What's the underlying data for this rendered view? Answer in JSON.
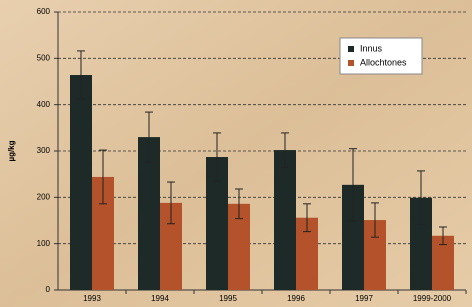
{
  "chart_data": {
    "type": "bar",
    "y_label": "µg/kg",
    "categories": [
      "1993",
      "1994",
      "1995",
      "1996",
      "1997",
      "1999-2000"
    ],
    "series": [
      {
        "name": "Innus",
        "color": "#1d2a27",
        "values": [
          464,
          330,
          287,
          302,
          227,
          199
        ],
        "errors": [
          52,
          54,
          52,
          37,
          78,
          58
        ]
      },
      {
        "name": "Allochtones",
        "color": "#b4532b",
        "values": [
          244,
          188,
          186,
          156,
          151,
          117
        ],
        "errors": [
          58,
          45,
          32,
          30,
          37,
          19
        ]
      }
    ],
    "ylim": [
      0,
      600
    ],
    "yticks": [
      0,
      100,
      200,
      300,
      400,
      500,
      600
    ],
    "grid": true,
    "legend": "upper right"
  }
}
